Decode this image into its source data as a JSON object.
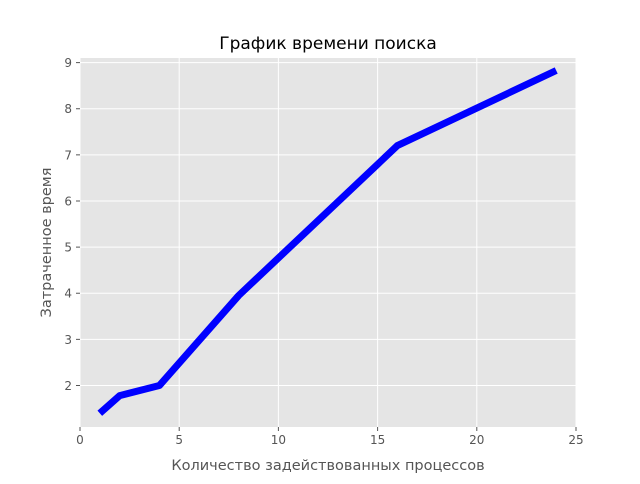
{
  "chart_data": {
    "type": "line",
    "title": "График времени поиска",
    "xlabel": "Количество задействованных процессов",
    "ylabel": "Затраченное время",
    "xlim": [
      0,
      25
    ],
    "ylim": [
      1.1,
      9.1
    ],
    "xticks": [
      0,
      5,
      10,
      15,
      20,
      25
    ],
    "yticks": [
      2,
      3,
      4,
      5,
      6,
      7,
      8,
      9
    ],
    "grid": true,
    "style": "ggplot",
    "series": [
      {
        "color": "#0000ff",
        "x": [
          1,
          2,
          4,
          8,
          16,
          24
        ],
        "y": [
          1.4,
          1.78,
          2.0,
          3.95,
          7.2,
          8.83
        ]
      }
    ]
  }
}
